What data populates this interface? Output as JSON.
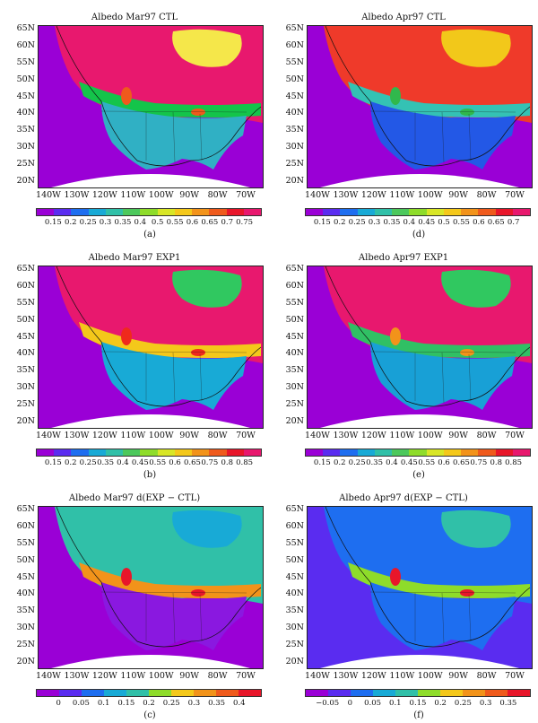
{
  "panels": [
    {
      "id": "a",
      "title": "Albedo Mar97 CTL",
      "label": "(a)",
      "ticks": [
        "0.15",
        "0.2",
        "0.25",
        "0.3",
        "0.35",
        "0.4",
        "0.5",
        "0.55",
        "0.6",
        "0.65",
        "0.7",
        "0.75"
      ],
      "colors": [
        "#9a00d6",
        "#5a2cf0",
        "#1e6ef0",
        "#18aad6",
        "#30c0a8",
        "#4cc85c",
        "#8edc2a",
        "#d8e626",
        "#f4c81a",
        "#f2931a",
        "#ef5a1c",
        "#e8162a",
        "#e8186e"
      ],
      "map": {
        "bg": "#9a00d6",
        "lowland": "#30b0c4",
        "north": "#e8186e",
        "arctic": "#f5e74a",
        "band": "#14c44a",
        "hot": "#ef5a1c"
      }
    },
    {
      "id": "d",
      "title": "Albedo Apr97 CTL",
      "label": "(d)",
      "ticks": [
        "0.15",
        "0.2",
        "0.25",
        "0.3",
        "0.35",
        "0.4",
        "0.45",
        "0.5",
        "0.55",
        "0.6",
        "0.65",
        "0.7"
      ],
      "colors": [
        "#9a00d6",
        "#5a2cf0",
        "#1e6ef0",
        "#18aad6",
        "#30c0a8",
        "#4cc85c",
        "#8edc2a",
        "#d8e626",
        "#f4c81a",
        "#f2931a",
        "#ef5a1c",
        "#e8162a",
        "#e8186e"
      ],
      "map": {
        "bg": "#9a00d6",
        "lowland": "#2358e6",
        "north": "#ef3a2a",
        "arctic": "#f2c81a",
        "band": "#34c2b4",
        "hot": "#30b84c"
      }
    },
    {
      "id": "b",
      "title": "Albedo Mar97 EXP1",
      "label": "(b)",
      "ticks": [
        "0.15",
        "0.2",
        "0.25",
        "0.35",
        "0.4",
        "0.45",
        "0.55",
        "0.6",
        "0.65",
        "0.75",
        "0.8",
        "0.85"
      ],
      "colors": [
        "#9a00d6",
        "#5a2cf0",
        "#1e6ef0",
        "#18aad6",
        "#30c0a8",
        "#4cc85c",
        "#8edc2a",
        "#d8e626",
        "#f4c81a",
        "#f2931a",
        "#ef5a1c",
        "#e8162a",
        "#e8186e"
      ],
      "map": {
        "bg": "#9a00d6",
        "lowland": "#18aad6",
        "north": "#e8186e",
        "arctic": "#30c860",
        "band": "#f4c81a",
        "hot": "#ef2a1c"
      }
    },
    {
      "id": "e",
      "title": "Albedo Apr97 EXP1",
      "label": "(e)",
      "ticks": [
        "0.15",
        "0.2",
        "0.25",
        "0.35",
        "0.4",
        "0.45",
        "0.55",
        "0.6",
        "0.65",
        "0.75",
        "0.8",
        "0.85"
      ],
      "colors": [
        "#9a00d6",
        "#5a2cf0",
        "#1e6ef0",
        "#18aad6",
        "#30c0a8",
        "#4cc85c",
        "#8edc2a",
        "#d8e626",
        "#f4c81a",
        "#f2931a",
        "#ef5a1c",
        "#e8162a",
        "#e8186e"
      ],
      "map": {
        "bg": "#9a00d6",
        "lowland": "#18a0d6",
        "north": "#e8186e",
        "arctic": "#30c860",
        "band": "#30c064",
        "hot": "#f2931a"
      }
    },
    {
      "id": "c",
      "title": "Albedo Mar97 d(EXP − CTL)",
      "label": "(c)",
      "ticks": [
        "0",
        "0.05",
        "0.1",
        "0.15",
        "0.2",
        "0.25",
        "0.3",
        "0.35",
        "0.4"
      ],
      "colors": [
        "#9a00d6",
        "#5a2cf0",
        "#1e6ef0",
        "#18aad6",
        "#30c0a8",
        "#8edc2a",
        "#f4c81a",
        "#f2931a",
        "#ef5a1c",
        "#e8162a"
      ],
      "map": {
        "bg": "#9a00d6",
        "lowland": "#8a18e0",
        "north": "#30c0a8",
        "arctic": "#18aad6",
        "band": "#f2931a",
        "hot": "#e8162a"
      }
    },
    {
      "id": "f",
      "title": "Albedo Apr97 d(EXP − CTL)",
      "label": "(f)",
      "ticks": [
        "−0.05",
        "0",
        "0.05",
        "0.1",
        "0.15",
        "0.2",
        "0.25",
        "0.3",
        "0.35"
      ],
      "colors": [
        "#9a00d6",
        "#5a2cf0",
        "#1e6ef0",
        "#18aad6",
        "#30c0a8",
        "#8edc2a",
        "#f4c81a",
        "#f2931a",
        "#ef5a1c",
        "#e8162a"
      ],
      "map": {
        "bg": "#5a2cf0",
        "lowland": "#1e6ef0",
        "north": "#1e6ef0",
        "arctic": "#30c0a8",
        "band": "#8edc2a",
        "hot": "#e8162a"
      }
    }
  ],
  "axes": {
    "lat": [
      "65N",
      "60N",
      "55N",
      "50N",
      "45N",
      "40N",
      "35N",
      "30N",
      "25N",
      "20N"
    ],
    "lon": [
      "140W",
      "130W",
      "120W",
      "110W",
      "100W",
      "90W",
      "80W",
      "70W"
    ]
  }
}
